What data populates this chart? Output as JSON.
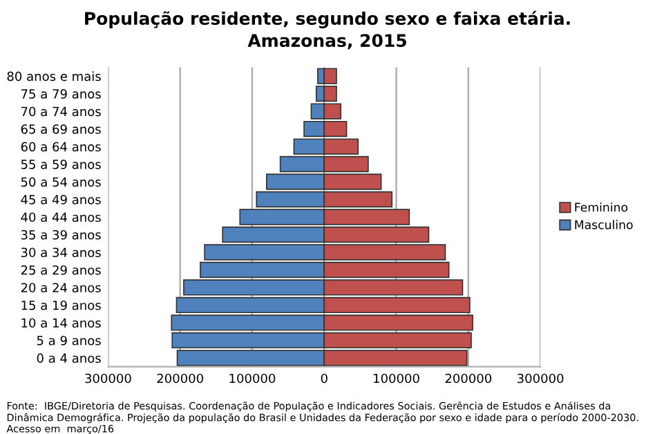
{
  "chart_data": {
    "type": "bar",
    "orientation": "horizontal",
    "stacked": true,
    "title": "População residente, segundo sexo e faixa etária.\nAmazonas, 2015",
    "categories": [
      "80 anos e mais",
      "75 a 79 anos",
      "70 a 74 anos",
      "65 a 69 anos",
      "60 a 64 anos",
      "55 a 59 anos",
      "50 a 54 anos",
      "45 a 49 anos",
      "40 a 44 anos",
      "35 a 39 anos",
      "30 a 34 anos",
      "25 a 29 anos",
      "20 a 24 anos",
      "15 a 19 anos",
      "10 a 14 anos",
      "5 a 9 anos",
      "0 a 4 anos"
    ],
    "series": [
      {
        "name": "Masculino",
        "color": "#4f81bd",
        "values": [
          -9000,
          -11000,
          -18000,
          -28000,
          -42000,
          -61000,
          -80000,
          -94000,
          -117000,
          -141000,
          -166000,
          -172000,
          -195000,
          -205000,
          -212000,
          -211000,
          -204000
        ]
      },
      {
        "name": "Feminino",
        "color": "#c0504d",
        "values": [
          17000,
          17000,
          23000,
          31000,
          47000,
          61000,
          79000,
          94000,
          118000,
          145000,
          168000,
          173000,
          192000,
          202000,
          206000,
          204000,
          198000
        ]
      }
    ],
    "xlim": [
      -300000,
      300000
    ],
    "xticks": [
      {
        "value": -300000,
        "label": "300000"
      },
      {
        "value": -200000,
        "label": "200000"
      },
      {
        "value": -100000,
        "label": "100000"
      },
      0,
      100000,
      200000,
      300000
    ],
    "grid": "x",
    "legend": "right",
    "annotations": [
      "Fonte:  IBGE/Diretoria de Pesquisas. Coordenação de População e Indicadores Sociais. Gerência de Estudos e Análises da Dinâmica Demográfica. Projeção da população do Brasil e Unidades da Federação por sexo e idade para o período 2000-2030. Acesso em  março/16"
    ]
  }
}
